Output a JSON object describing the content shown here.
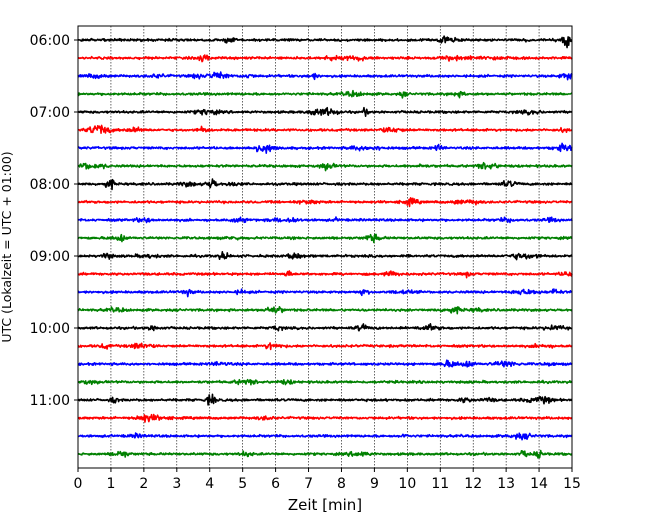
{
  "chart_data": {
    "type": "line",
    "title": "",
    "xlabel": "Zeit  [min]",
    "ylabel": "UTC (Lokalzeit = UTC + 01:00)",
    "xlim": [
      0,
      15
    ],
    "x_ticks": [
      "0",
      "1",
      "2",
      "3",
      "4",
      "5",
      "6",
      "7",
      "8",
      "9",
      "10",
      "11",
      "12",
      "13",
      "14",
      "15"
    ],
    "y_ticks": [
      {
        "label": "06:00",
        "row": 0
      },
      {
        "label": "07:00",
        "row": 4
      },
      {
        "label": "08:00",
        "row": 8
      },
      {
        "label": "09:00",
        "row": 12
      },
      {
        "label": "10:00",
        "row": 16
      },
      {
        "label": "11:00",
        "row": 20
      }
    ],
    "grid_x": true,
    "series_colors": [
      "#000000",
      "#ff0000",
      "#0000ff",
      "#008000"
    ],
    "rows": [
      {
        "start": "06:00",
        "color": "#000000"
      },
      {
        "start": "06:15",
        "color": "#ff0000"
      },
      {
        "start": "06:30",
        "color": "#0000ff"
      },
      {
        "start": "06:45",
        "color": "#008000"
      },
      {
        "start": "07:00",
        "color": "#000000"
      },
      {
        "start": "07:15",
        "color": "#ff0000"
      },
      {
        "start": "07:30",
        "color": "#0000ff"
      },
      {
        "start": "07:45",
        "color": "#008000"
      },
      {
        "start": "08:00",
        "color": "#000000"
      },
      {
        "start": "08:15",
        "color": "#ff0000"
      },
      {
        "start": "08:30",
        "color": "#0000ff"
      },
      {
        "start": "08:45",
        "color": "#008000"
      },
      {
        "start": "09:00",
        "color": "#000000"
      },
      {
        "start": "09:15",
        "color": "#ff0000"
      },
      {
        "start": "09:30",
        "color": "#0000ff"
      },
      {
        "start": "09:45",
        "color": "#008000"
      },
      {
        "start": "10:00",
        "color": "#000000"
      },
      {
        "start": "10:15",
        "color": "#ff0000"
      },
      {
        "start": "10:30",
        "color": "#0000ff"
      },
      {
        "start": "10:45",
        "color": "#008000"
      },
      {
        "start": "11:00",
        "color": "#000000"
      },
      {
        "start": "11:15",
        "color": "#ff0000"
      },
      {
        "start": "11:30",
        "color": "#0000ff"
      },
      {
        "start": "11:45",
        "color": "#008000"
      }
    ]
  }
}
